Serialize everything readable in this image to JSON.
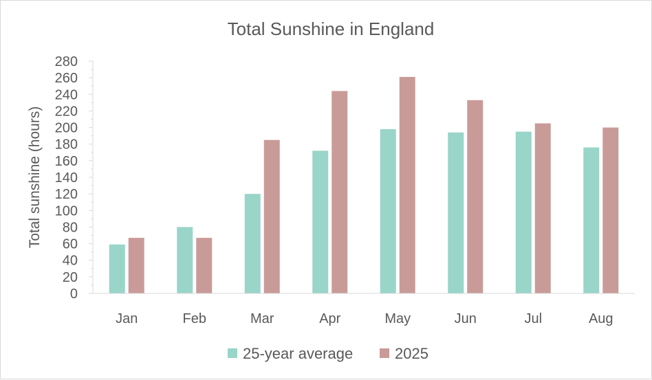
{
  "chart_data": {
    "type": "bar",
    "title": "Total Sunshine in England",
    "xlabel": "",
    "ylabel": "Total sunshine (hours)",
    "categories": [
      "Jan",
      "Feb",
      "Mar",
      "Apr",
      "May",
      "Jun",
      "Jul",
      "Aug"
    ],
    "series": [
      {
        "name": "25-year average",
        "color": "#99d5c9",
        "values": [
          59,
          80,
          120,
          172,
          198,
          194,
          195,
          176
        ]
      },
      {
        "name": "2025",
        "color": "#c99b98",
        "values": [
          67,
          67,
          185,
          244,
          261,
          233,
          205,
          200
        ]
      }
    ],
    "ylim": [
      0,
      280
    ],
    "yticks": [
      "0",
      "20",
      "40",
      "60",
      "80",
      "100",
      "120",
      "140",
      "160",
      "180",
      "200",
      "220",
      "240",
      "260",
      "280"
    ],
    "grid": false,
    "legend_position": "bottom"
  }
}
